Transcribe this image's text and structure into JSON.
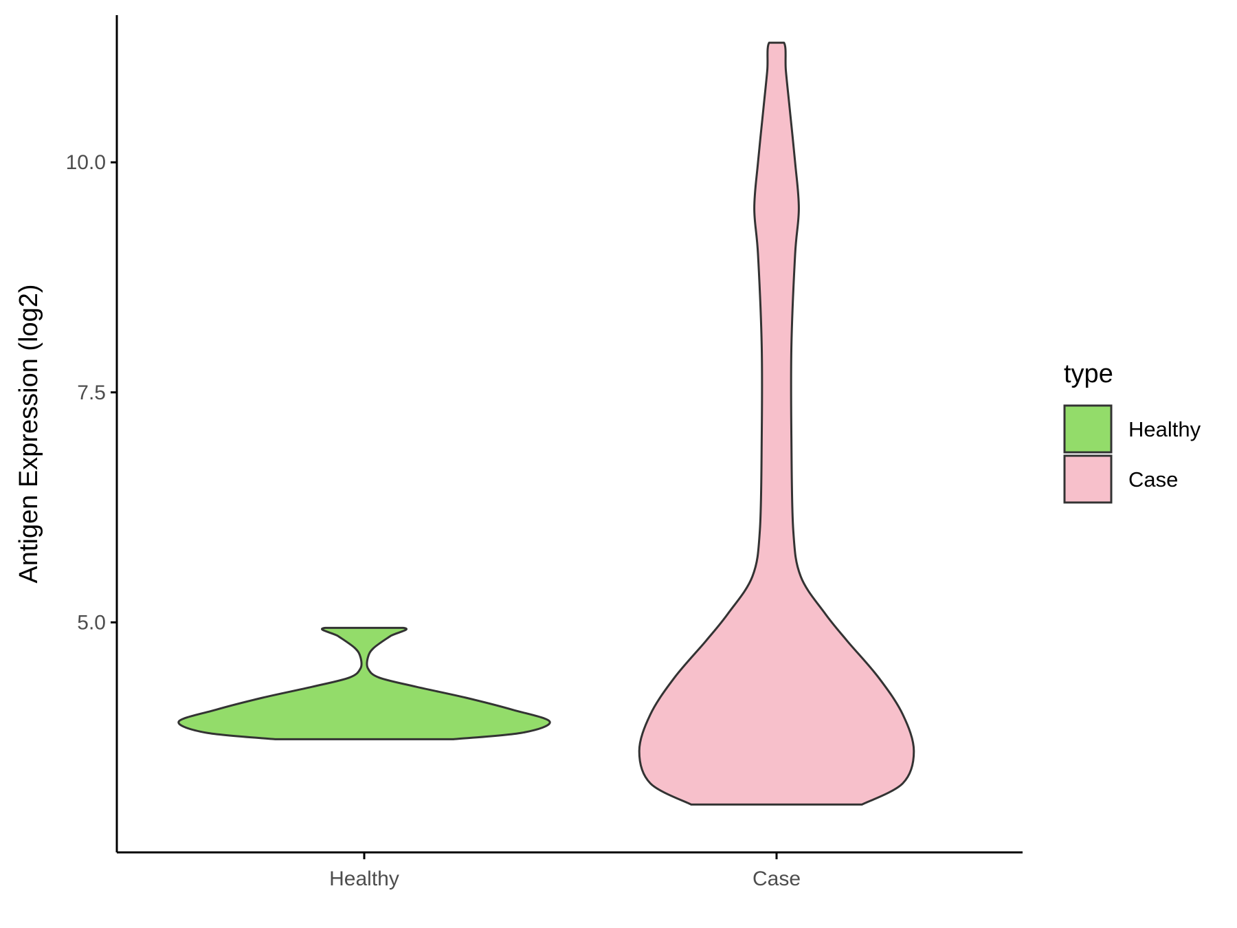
{
  "chart_data": {
    "type": "violin",
    "xlabel": "",
    "ylabel": "Antigen Expression (log2)",
    "categories": [
      "Healthy",
      "Case"
    ],
    "ylim": [
      2.5,
      11.6
    ],
    "yticks": [
      5.0,
      7.5,
      10.0
    ],
    "ytick_labels": [
      "5.0",
      "7.5",
      "10.0"
    ],
    "grid": false,
    "legend": {
      "title": "type",
      "position": "right",
      "entries": [
        "Healthy",
        "Case"
      ]
    },
    "colors": {
      "Healthy": "#93dc6a",
      "Case": "#f7c0cb",
      "outline": "#333333"
    },
    "series": [
      {
        "name": "Healthy",
        "min": 3.73,
        "max": 4.94,
        "profile": [
          [
            3.73,
            0.48
          ],
          [
            3.8,
            0.85
          ],
          [
            3.92,
            1.0
          ],
          [
            4.05,
            0.8
          ],
          [
            4.18,
            0.55
          ],
          [
            4.3,
            0.28
          ],
          [
            4.4,
            0.08
          ],
          [
            4.5,
            0.02
          ],
          [
            4.62,
            0.02
          ],
          [
            4.72,
            0.05
          ],
          [
            4.85,
            0.14
          ],
          [
            4.94,
            0.21
          ]
        ]
      },
      {
        "name": "Case",
        "min": 3.02,
        "max": 11.3,
        "profile": [
          [
            3.02,
            0.46
          ],
          [
            3.25,
            0.68
          ],
          [
            3.6,
            0.74
          ],
          [
            4.0,
            0.68
          ],
          [
            4.4,
            0.55
          ],
          [
            4.8,
            0.38
          ],
          [
            5.1,
            0.26
          ],
          [
            5.5,
            0.13
          ],
          [
            6.0,
            0.09
          ],
          [
            7.0,
            0.08
          ],
          [
            8.0,
            0.08
          ],
          [
            9.0,
            0.1
          ],
          [
            9.5,
            0.12
          ],
          [
            10.0,
            0.1
          ],
          [
            10.6,
            0.07
          ],
          [
            11.0,
            0.05
          ],
          [
            11.3,
            0.04
          ]
        ]
      }
    ]
  }
}
